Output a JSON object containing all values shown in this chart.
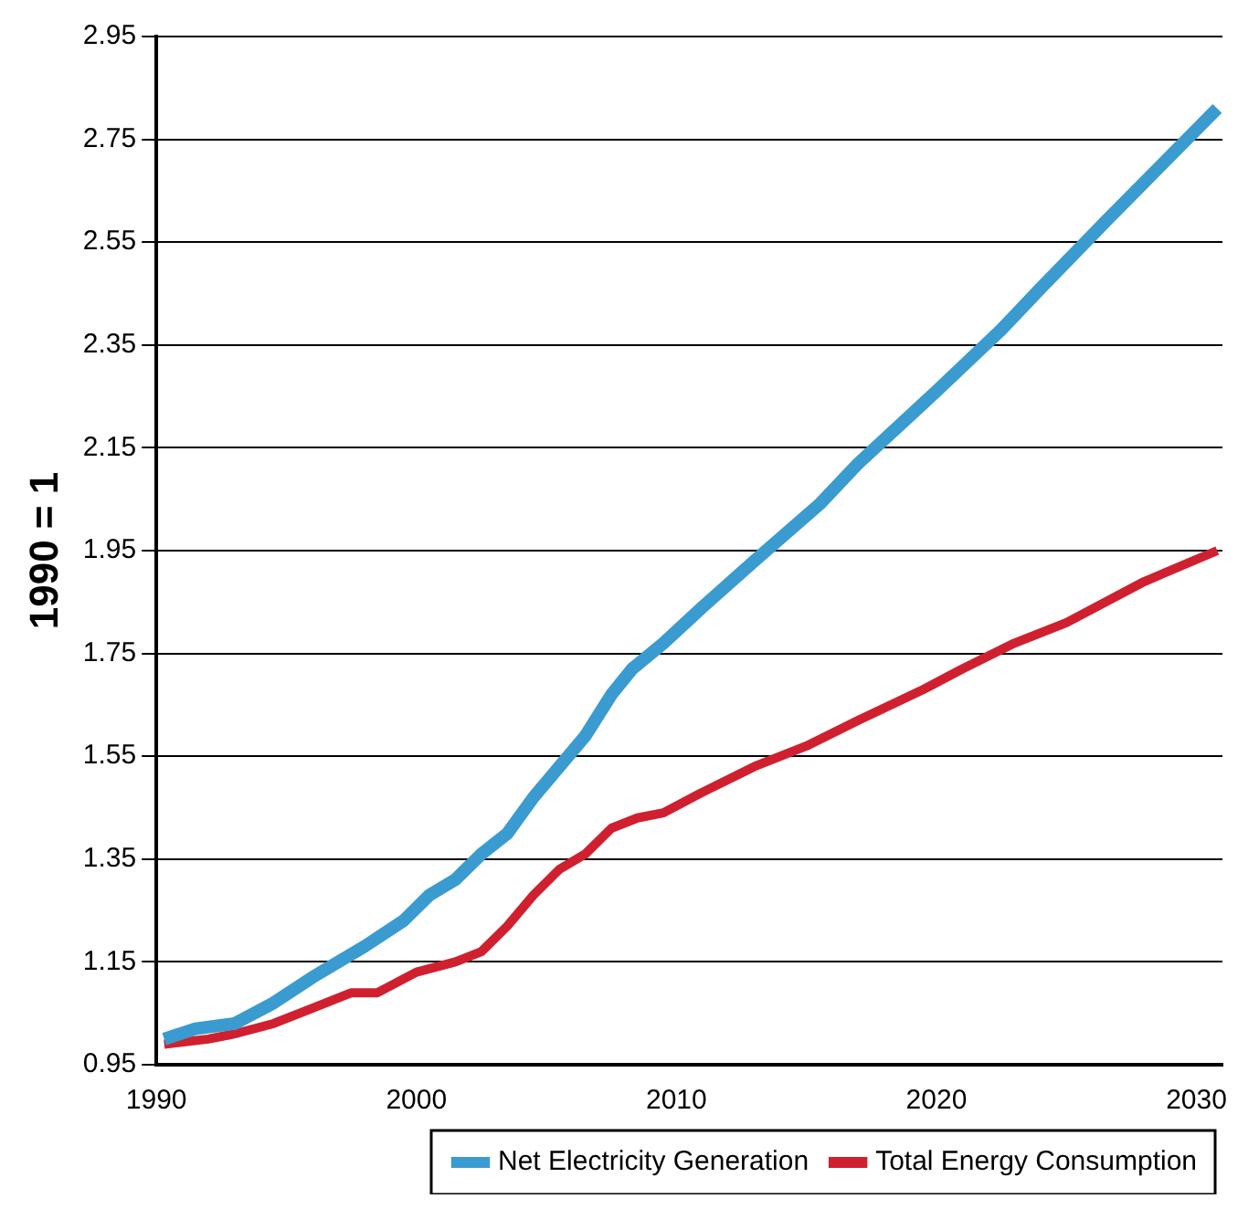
{
  "chart_data": {
    "type": "line",
    "ylabel": "1990 = 1",
    "xlim": [
      1990,
      2031
    ],
    "ylim": [
      0.95,
      2.95
    ],
    "xticks": [
      1990,
      2000,
      2010,
      2020,
      2030
    ],
    "yticks": [
      0.95,
      1.15,
      1.35,
      1.55,
      1.75,
      1.95,
      2.15,
      2.35,
      2.55,
      2.75,
      2.95
    ],
    "grid": "y",
    "legend": "bottom right",
    "line_style": "solid",
    "marker": "none",
    "series": [
      {
        "name": "Net Electricity Generation",
        "color": "#3a9bd0",
        "x": [
          1990.3,
          1991.5,
          1993,
          1994.5,
          1996,
          1998,
          1999.5,
          2000.5,
          2001.5,
          2002.5,
          2003.5,
          2004.5,
          2005.5,
          2006.5,
          2007.5,
          2008.3,
          2009.5,
          2011,
          2013,
          2015.5,
          2017,
          2020,
          2022.5,
          2024,
          2026.5,
          2030.8
        ],
        "values": [
          1.0,
          1.02,
          1.03,
          1.07,
          1.12,
          1.18,
          1.23,
          1.28,
          1.31,
          1.36,
          1.4,
          1.47,
          1.53,
          1.59,
          1.67,
          1.72,
          1.77,
          1.84,
          1.93,
          2.04,
          2.12,
          2.26,
          2.38,
          2.46,
          2.59,
          2.81
        ]
      },
      {
        "name": "Total Energy Consumption",
        "color": "#d02030",
        "x": [
          1990.3,
          1992,
          1993,
          1994.5,
          1996,
          1997.5,
          1998.5,
          2000,
          2001.5,
          2002.5,
          2003.5,
          2004.5,
          2005.5,
          2006.5,
          2007.5,
          2008.5,
          2009.5,
          2011,
          2013,
          2015,
          2017,
          2019.5,
          2021,
          2023,
          2025,
          2028,
          2030.8
        ],
        "values": [
          0.99,
          1.0,
          1.01,
          1.03,
          1.06,
          1.09,
          1.09,
          1.13,
          1.15,
          1.17,
          1.22,
          1.28,
          1.33,
          1.36,
          1.41,
          1.43,
          1.44,
          1.48,
          1.53,
          1.57,
          1.62,
          1.68,
          1.72,
          1.77,
          1.81,
          1.89,
          1.95
        ]
      }
    ]
  }
}
